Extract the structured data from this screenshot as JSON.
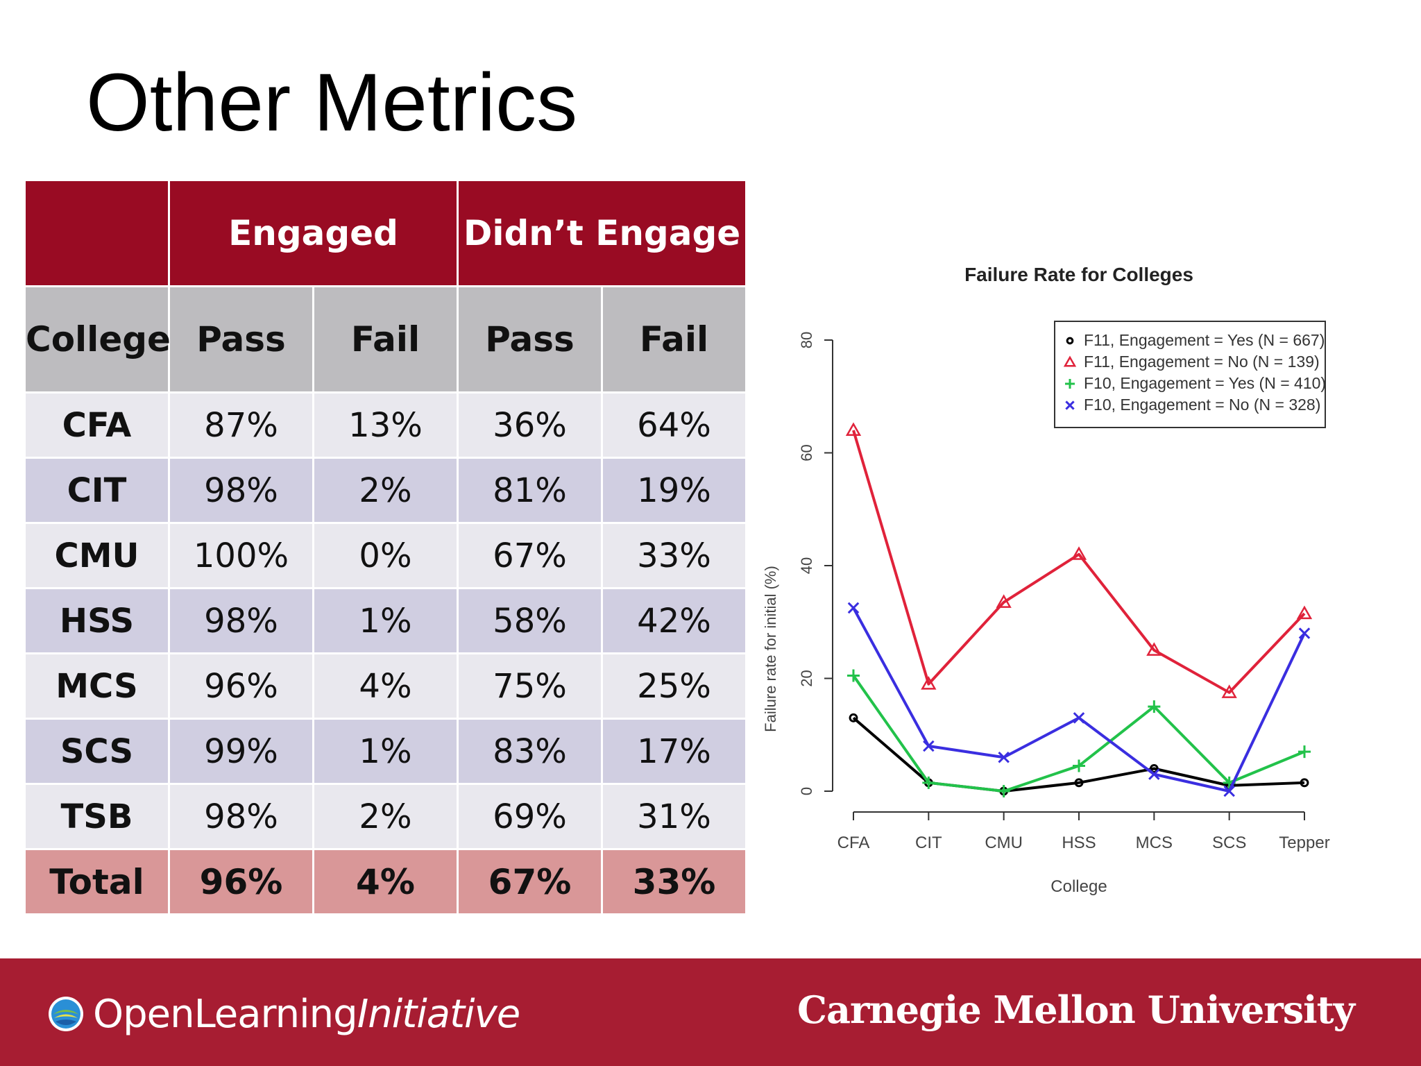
{
  "slide": {
    "title": "Other Metrics"
  },
  "table": {
    "group_headers": [
      "",
      "Engaged",
      "Didn’t Engage"
    ],
    "sub_headers": [
      "College",
      "Pass",
      "Fail",
      "Pass",
      "Fail"
    ],
    "rows": [
      [
        "CFA",
        "87%",
        "13%",
        "36%",
        "64%"
      ],
      [
        "CIT",
        "98%",
        "2%",
        "81%",
        "19%"
      ],
      [
        "CMU",
        "100%",
        "0%",
        "67%",
        "33%"
      ],
      [
        "HSS",
        "98%",
        "1%",
        "58%",
        "42%"
      ],
      [
        "MCS",
        "96%",
        "4%",
        "75%",
        "25%"
      ],
      [
        "SCS",
        "99%",
        "1%",
        "83%",
        "17%"
      ],
      [
        "TSB",
        "98%",
        "2%",
        "69%",
        "31%"
      ]
    ],
    "total": [
      "Total",
      "96%",
      "4%",
      "67%",
      "33%"
    ],
    "colors": {
      "header": "#990b23",
      "subheader": "#bdbcbf",
      "row_odd": "#e9e8ee",
      "row_even": "#d0cee1",
      "total": "#d99798"
    }
  },
  "chart_data": {
    "type": "line",
    "title": "Failure Rate for Colleges",
    "xlabel": "College",
    "ylabel": "Failure rate for initial (%)",
    "categories": [
      "CFA",
      "CIT",
      "CMU",
      "HSS",
      "MCS",
      "SCS",
      "Tepper"
    ],
    "ylim": [
      0,
      80
    ],
    "yticks": [
      0,
      20,
      40,
      60,
      80
    ],
    "grid": false,
    "legend_position": "top-right",
    "series": [
      {
        "name": "F11, Engagement = Yes (N = 667)",
        "marker": "circle",
        "color": "#000000",
        "values": [
          13,
          1.5,
          0,
          1.5,
          4,
          1,
          1.5
        ]
      },
      {
        "name": "F11, Engagement = No (N = 139)",
        "marker": "triangle",
        "color": "#e0223a",
        "values": [
          64,
          19,
          33.5,
          42,
          25,
          17.5,
          31.5
        ]
      },
      {
        "name": "F10, Engagement = Yes (N = 410)",
        "marker": "plus",
        "color": "#22c24a",
        "values": [
          20.5,
          1.5,
          0,
          4.5,
          15,
          1.5,
          7
        ]
      },
      {
        "name": "F10, Engagement = No (N = 328)",
        "marker": "x",
        "color": "#3a2ee0",
        "values": [
          32.5,
          8,
          6,
          13,
          3,
          0,
          28
        ]
      }
    ]
  },
  "footer": {
    "oli_regular": "OpenLearning",
    "oli_italic": "Initiative",
    "university": "Carnegie Mellon University",
    "bar_color": "#a71d32"
  }
}
